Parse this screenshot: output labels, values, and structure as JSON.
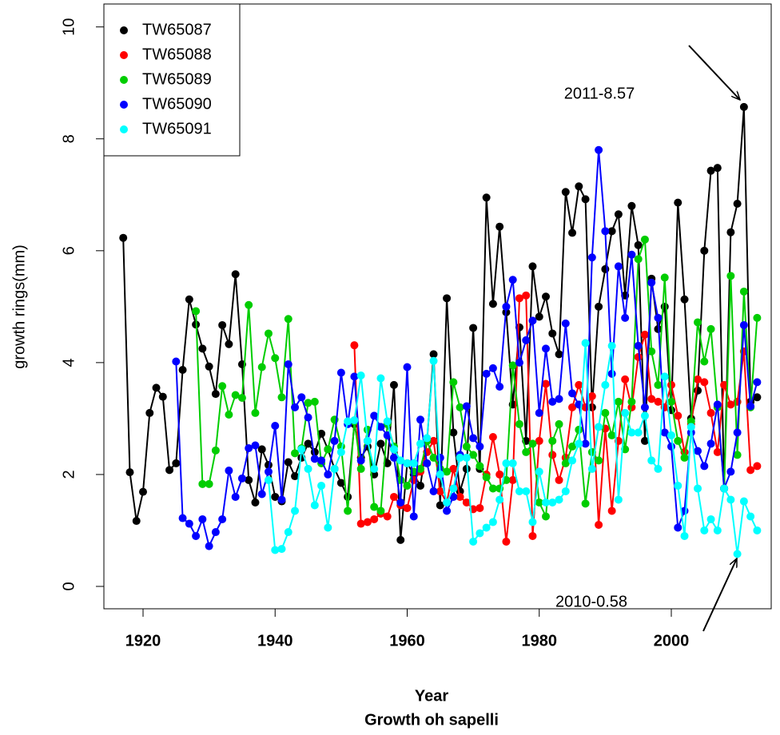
{
  "chart_data": {
    "type": "line",
    "title": "Growth oh sapelli",
    "x_label": "Year",
    "y_label": "growth rings(mm)",
    "x": [
      1917,
      1918,
      1919,
      1920,
      1921,
      1922,
      1923,
      1924,
      1925,
      1926,
      1927,
      1928,
      1929,
      1930,
      1931,
      1932,
      1933,
      1934,
      1935,
      1936,
      1937,
      1938,
      1939,
      1940,
      1941,
      1942,
      1943,
      1944,
      1945,
      1946,
      1947,
      1948,
      1949,
      1950,
      1951,
      1952,
      1953,
      1954,
      1955,
      1956,
      1957,
      1958,
      1959,
      1960,
      1961,
      1962,
      1963,
      1964,
      1965,
      1966,
      1967,
      1968,
      1969,
      1970,
      1971,
      1972,
      1973,
      1974,
      1975,
      1976,
      1977,
      1978,
      1979,
      1980,
      1981,
      1982,
      1983,
      1984,
      1985,
      1986,
      1987,
      1988,
      1989,
      1990,
      1991,
      1992,
      1993,
      1994,
      1995,
      1996,
      1997,
      1998,
      1999,
      2000,
      2001,
      2002,
      2003,
      2004,
      2005,
      2006,
      2007,
      2008,
      2009,
      2010,
      2011,
      2012,
      2013
    ],
    "series": [
      {
        "name": "TW65087",
        "color": "#000000",
        "values": [
          6.23,
          2.04,
          1.17,
          1.69,
          3.1,
          3.55,
          3.39,
          2.08,
          2.2,
          3.87,
          5.13,
          4.68,
          4.25,
          3.93,
          3.44,
          4.67,
          4.33,
          5.58,
          3.97,
          1.9,
          1.5,
          2.45,
          2.17,
          1.6,
          1.52,
          2.22,
          1.97,
          2.3,
          2.55,
          2.4,
          2.73,
          2.45,
          2.1,
          1.85,
          1.6,
          2.9,
          2.3,
          2.5,
          2.0,
          2.55,
          2.2,
          3.6,
          0.83,
          2.2,
          2.0,
          1.8,
          2.6,
          4.15,
          1.45,
          5.15,
          2.75,
          1.7,
          2.1,
          4.62,
          2.1,
          6.95,
          5.05,
          6.43,
          4.9,
          3.25,
          4.63,
          2.6,
          5.72,
          4.82,
          5.18,
          4.52,
          4.15,
          7.05,
          6.32,
          7.15,
          6.92,
          3.2,
          5.0,
          5.67,
          6.35,
          6.65,
          5.2,
          6.8,
          6.1,
          2.6,
          5.5,
          4.6,
          5.0,
          3.15,
          6.86,
          5.13,
          3.0,
          3.5,
          6.0,
          7.43,
          7.48,
          1.75,
          6.33,
          6.84,
          8.57,
          3.3,
          3.38
        ]
      },
      {
        "name": "TW65088",
        "color": "#ff0000",
        "values": [
          null,
          null,
          null,
          null,
          null,
          null,
          null,
          null,
          null,
          null,
          null,
          null,
          null,
          null,
          null,
          null,
          null,
          null,
          null,
          null,
          null,
          null,
          null,
          null,
          null,
          null,
          null,
          null,
          null,
          null,
          null,
          null,
          null,
          null,
          null,
          4.31,
          1.12,
          1.15,
          1.2,
          1.3,
          1.25,
          1.6,
          1.45,
          1.4,
          1.9,
          2.05,
          2.4,
          2.6,
          1.7,
          1.5,
          2.1,
          1.6,
          1.5,
          1.38,
          1.4,
          2.0,
          2.67,
          2.0,
          0.8,
          1.9,
          5.15,
          5.2,
          0.9,
          2.6,
          3.62,
          2.35,
          1.9,
          2.3,
          3.2,
          3.6,
          3.2,
          3.4,
          1.1,
          2.82,
          1.35,
          2.6,
          3.7,
          3.2,
          4.1,
          4.5,
          3.35,
          3.3,
          3.2,
          3.6,
          3.05,
          2.4,
          2.9,
          3.7,
          3.65,
          3.1,
          2.4,
          3.6,
          3.25,
          3.3,
          4.2,
          2.08,
          2.15
        ]
      },
      {
        "name": "TW65089",
        "color": "#00cd00",
        "values": [
          null,
          null,
          null,
          null,
          null,
          null,
          null,
          null,
          null,
          null,
          null,
          4.92,
          1.83,
          1.83,
          2.43,
          3.58,
          3.07,
          3.42,
          3.37,
          5.03,
          3.1,
          3.92,
          4.52,
          4.08,
          3.38,
          4.78,
          2.38,
          2.47,
          3.28,
          3.3,
          2.2,
          2.45,
          2.98,
          2.5,
          1.35,
          2.95,
          2.1,
          2.8,
          1.42,
          1.35,
          2.9,
          2.5,
          1.9,
          1.8,
          2.05,
          2.1,
          2.6,
          2.3,
          2.1,
          2.05,
          3.65,
          3.2,
          2.5,
          2.35,
          2.15,
          1.95,
          1.75,
          1.75,
          1.9,
          3.95,
          2.9,
          2.4,
          2.55,
          1.5,
          1.25,
          2.6,
          2.9,
          2.2,
          2.5,
          2.8,
          1.48,
          2.4,
          2.25,
          3.1,
          2.7,
          3.3,
          2.45,
          3.3,
          5.85,
          6.2,
          4.2,
          3.6,
          5.52,
          3.3,
          2.6,
          2.3,
          2.95,
          4.72,
          4.02,
          4.6,
          3.2,
          1.75,
          5.55,
          2.35,
          5.27,
          3.2,
          4.8
        ]
      },
      {
        "name": "TW65090",
        "color": "#0000ff",
        "values": [
          null,
          null,
          null,
          null,
          null,
          null,
          null,
          null,
          4.02,
          1.22,
          1.12,
          0.9,
          1.2,
          0.72,
          0.97,
          1.2,
          2.07,
          1.6,
          1.93,
          2.47,
          2.52,
          1.65,
          2.05,
          2.87,
          1.55,
          3.97,
          3.2,
          3.38,
          3.02,
          2.28,
          2.25,
          2.0,
          2.6,
          3.82,
          2.9,
          3.75,
          2.25,
          2.6,
          3.05,
          2.85,
          2.7,
          2.3,
          1.5,
          3.92,
          1.25,
          2.98,
          2.2,
          1.7,
          2.3,
          1.35,
          1.6,
          2.35,
          3.22,
          2.65,
          2.5,
          3.8,
          3.9,
          3.57,
          5.0,
          5.48,
          4.0,
          4.4,
          4.75,
          3.1,
          4.25,
          3.3,
          3.35,
          4.7,
          3.45,
          3.25,
          2.55,
          5.88,
          7.8,
          6.35,
          3.8,
          5.72,
          4.8,
          5.93,
          4.3,
          3.2,
          5.43,
          4.8,
          2.75,
          2.5,
          1.05,
          1.35,
          2.75,
          2.42,
          2.15,
          2.55,
          3.25,
          1.75,
          2.05,
          2.75,
          4.67,
          3.22,
          3.65
        ]
      },
      {
        "name": "TW65091",
        "color": "#00ffff",
        "values": [
          null,
          null,
          null,
          null,
          null,
          null,
          null,
          null,
          null,
          null,
          null,
          null,
          null,
          null,
          null,
          null,
          null,
          null,
          null,
          null,
          null,
          null,
          1.9,
          0.65,
          0.67,
          0.97,
          1.35,
          2.45,
          2.1,
          1.45,
          1.8,
          1.05,
          2.1,
          2.4,
          2.95,
          2.97,
          3.77,
          2.6,
          2.1,
          3.72,
          2.95,
          2.45,
          2.25,
          2.2,
          2.2,
          2.55,
          2.65,
          4.03,
          2.0,
          1.5,
          1.75,
          2.3,
          2.3,
          0.8,
          0.95,
          1.05,
          1.15,
          1.55,
          2.2,
          2.2,
          1.7,
          1.7,
          1.15,
          2.05,
          1.5,
          1.5,
          1.55,
          1.7,
          2.25,
          2.55,
          4.35,
          2.1,
          2.85,
          3.6,
          4.3,
          1.55,
          3.1,
          2.75,
          2.75,
          3.05,
          2.25,
          2.1,
          3.75,
          2.7,
          1.8,
          0.9,
          2.85,
          1.75,
          1.0,
          1.2,
          1.0,
          1.75,
          1.55,
          0.58,
          1.52,
          1.25,
          1.0
        ]
      }
    ],
    "annotations": [
      "2011-8.57",
      "2010-0.58"
    ],
    "xlim": [
      1914.07,
      2015.13
    ],
    "ylim": [
      -0.4,
      10.41
    ],
    "xticks": [
      1920,
      1940,
      1960,
      1980,
      2000
    ],
    "yticks": [
      0,
      2,
      4,
      6,
      8,
      10
    ],
    "legend": "top-left"
  }
}
